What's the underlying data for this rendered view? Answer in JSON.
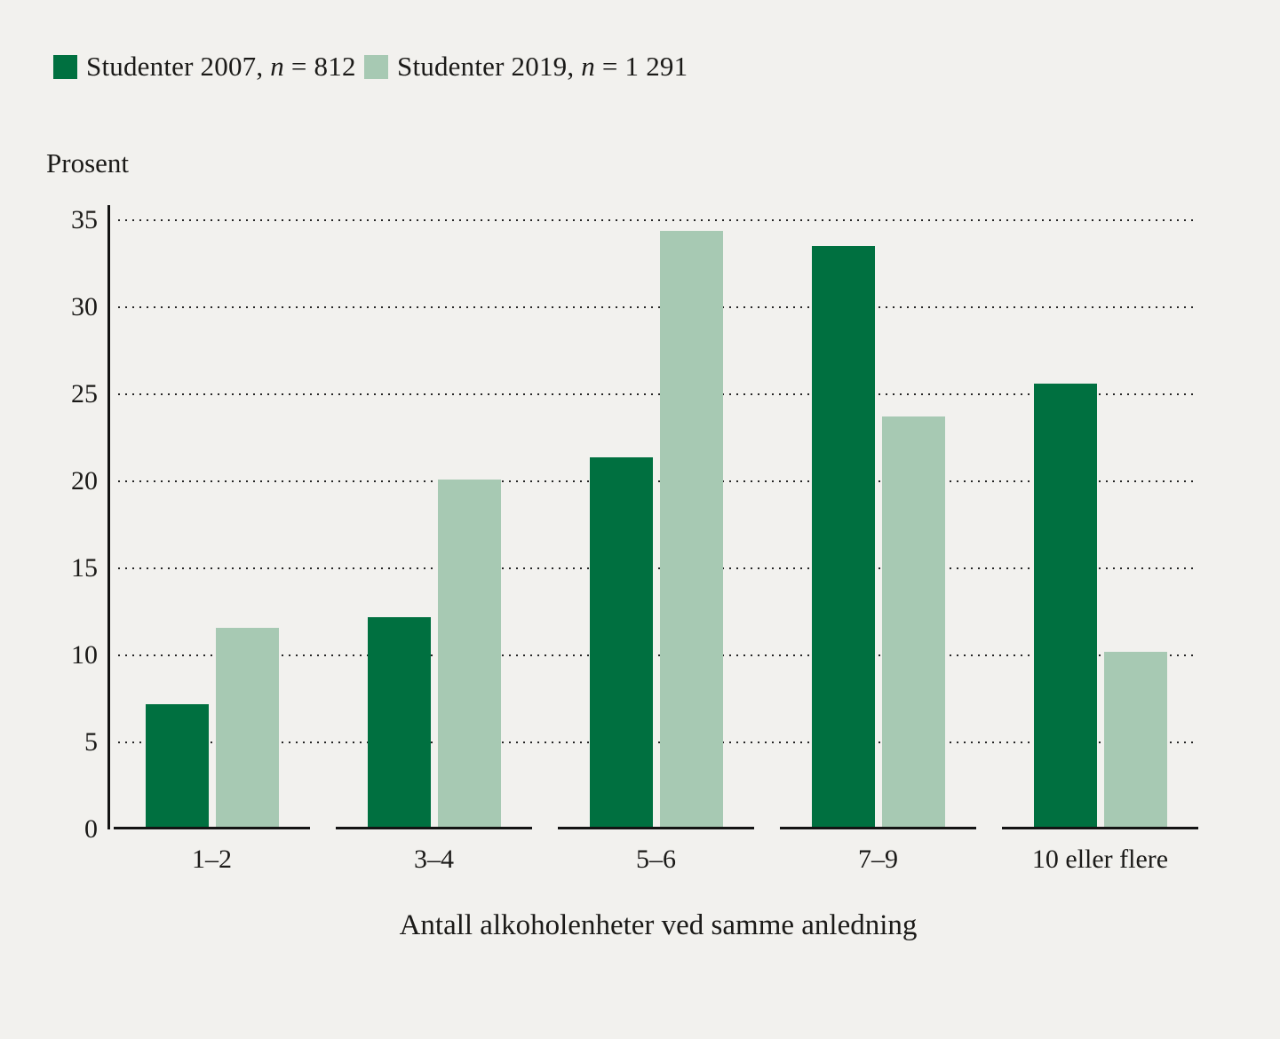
{
  "legend": [
    {
      "label_prefix": "Studenter 2007, ",
      "n_symbol": "n",
      "n_rest": " = 812",
      "color": "#007040"
    },
    {
      "label_prefix": "Studenter 2019, ",
      "n_symbol": "n",
      "n_rest": " = 1 291",
      "color": "#a7c9b3"
    }
  ],
  "chart_data": {
    "type": "bar",
    "title": "",
    "ylabel": "Prosent",
    "xlabel": "Antall alkoholenheter ved samme anledning",
    "categories": [
      "1–2",
      "3–4",
      "5–6",
      "7–9",
      "10 eller flere"
    ],
    "series": [
      {
        "name": "Studenter 2007, n = 812",
        "color": "#007040",
        "values": [
          7.2,
          12.2,
          21.4,
          33.5,
          25.6
        ]
      },
      {
        "name": "Studenter 2019, n = 1 291",
        "color": "#a7c9b3",
        "values": [
          11.6,
          20.1,
          34.4,
          23.7,
          10.2
        ]
      }
    ],
    "ylim": [
      0,
      35
    ],
    "yticks": [
      0,
      5,
      10,
      15,
      20,
      25,
      30,
      35
    ],
    "grid": "dotted-horizontal",
    "legend_position": "top-left"
  },
  "colors": {
    "background": "#f2f1ee",
    "axis": "#141414",
    "text": "#1b1a18",
    "grid_dots": "#262626"
  }
}
